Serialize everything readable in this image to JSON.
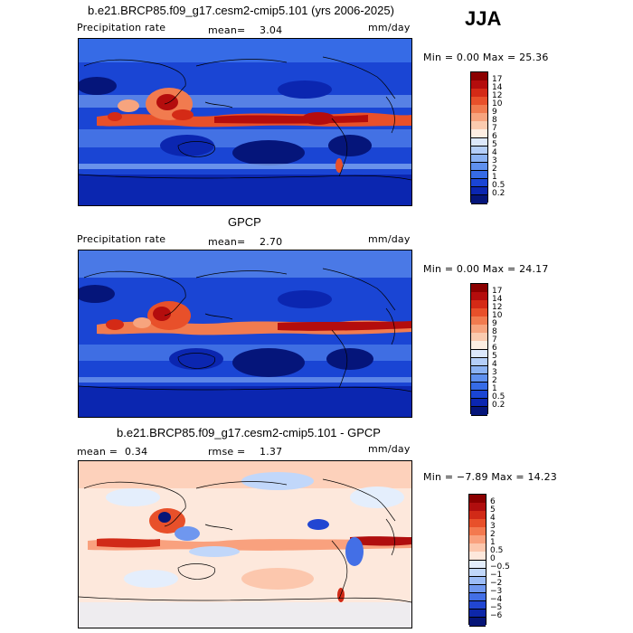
{
  "season": "JJA",
  "panels": [
    {
      "title": "b.e21.BRCP85.f09_g17.cesm2-cmip5.101 (yrs 2006-2025)",
      "left_label": "Precipitation rate",
      "stat_label": "mean=",
      "stat_value": "3.04",
      "units": "mm/day",
      "minmax": "Min =    0.00 Max =   25.36",
      "palette": "prect",
      "labels": [
        "17",
        "14",
        "12",
        "10",
        "9",
        "8",
        "7",
        "6",
        "5",
        "4",
        "3",
        "2",
        "1",
        "0.5",
        "0.2"
      ]
    },
    {
      "title": "GPCP",
      "left_label": "Precipitation rate",
      "stat_label": "mean=",
      "stat_value": "2.70",
      "units": "mm/day",
      "minmax": "Min =    0.00 Max =   24.17",
      "palette": "prect",
      "labels": [
        "17",
        "14",
        "12",
        "10",
        "9",
        "8",
        "7",
        "6",
        "5",
        "4",
        "3",
        "2",
        "1",
        "0.5",
        "0.2"
      ]
    },
    {
      "title": "b.e21.BRCP85.f09_g17.cesm2-cmip5.101 - GPCP",
      "mean_label": "mean =",
      "mean_value": "0.34",
      "rmse_label": "rmse =",
      "rmse_value": "1.37",
      "units": "mm/day",
      "minmax": "Min =  −7.89 Max =   14.23",
      "palette": "diff",
      "labels": [
        "6",
        "5",
        "4",
        "3",
        "2",
        "1",
        "0.5",
        "0",
        "−0.5",
        "−1",
        "−2",
        "−3",
        "−4",
        "−5",
        "−6"
      ]
    }
  ],
  "colors": {
    "prect": [
      "#8b0000",
      "#b40d0d",
      "#d42a16",
      "#e8502a",
      "#f17b4f",
      "#f7a47e",
      "#fbcbaf",
      "#fdeee2",
      "#dce8fb",
      "#b4cef8",
      "#8bb2f3",
      "#5f90ee",
      "#366be6",
      "#1a45d4",
      "#0b26b0",
      "#05157a"
    ],
    "diff": [
      "#8b0000",
      "#b00e0e",
      "#d12a17",
      "#e8502a",
      "#f3794f",
      "#f9a17e",
      "#fcc7ad",
      "#fde8dc",
      "#e4eefc",
      "#c1d7fa",
      "#9cbcf6",
      "#6f97ef",
      "#436fe6",
      "#2146d2",
      "#0d27a9",
      "#061577"
    ]
  }
}
